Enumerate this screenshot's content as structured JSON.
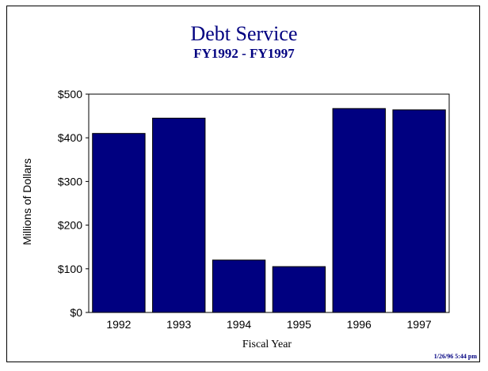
{
  "chart_data": {
    "type": "bar",
    "title": "Debt Service",
    "subtitle": "FY1992 - FY1997",
    "xlabel": "Fiscal Year",
    "ylabel": "Millions of Dollars",
    "categories": [
      "1992",
      "1993",
      "1994",
      "1995",
      "1996",
      "1997"
    ],
    "values": [
      410,
      445,
      120,
      105,
      467,
      464
    ],
    "ylim": [
      0,
      500
    ],
    "yticks": [
      0,
      100,
      200,
      300,
      400,
      500
    ],
    "ytick_labels": [
      "$0",
      "$100",
      "$200",
      "$300",
      "$400",
      "$500"
    ],
    "bar_color": "#000080",
    "grid": false,
    "legend": "none"
  },
  "footer": {
    "timestamp": "1/26/96  5:44 pm"
  },
  "colors": {
    "title": "#000080",
    "bars": "#000080"
  }
}
